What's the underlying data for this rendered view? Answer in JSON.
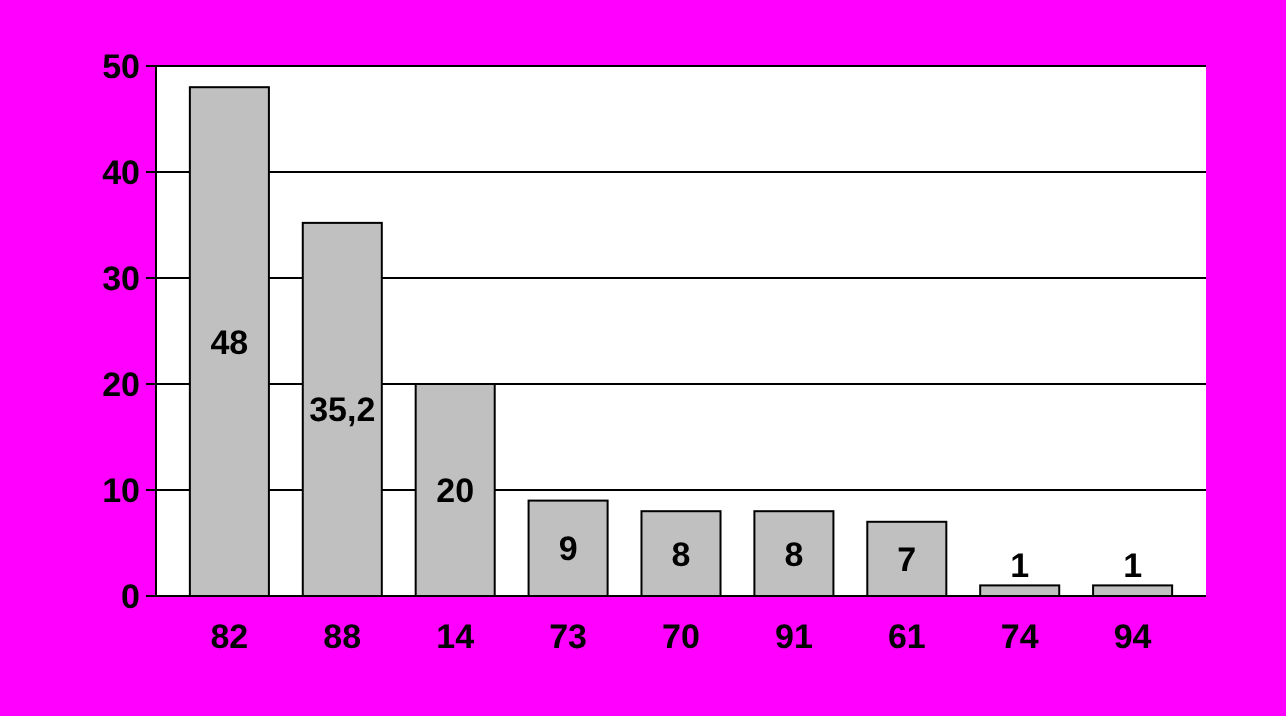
{
  "chart_data": {
    "type": "bar",
    "categories": [
      "82",
      "88",
      "14",
      "73",
      "70",
      "91",
      "61",
      "74",
      "94"
    ],
    "values": [
      48,
      35.2,
      20,
      9,
      8,
      8,
      7,
      1,
      1
    ],
    "value_labels": [
      "48",
      "35,2",
      "20",
      "9",
      "8",
      "8",
      "7",
      "1",
      "1"
    ],
    "color": "#c0c0c0",
    "ylim": [
      0,
      50
    ],
    "yticks": [
      0,
      10,
      20,
      30,
      40,
      50
    ],
    "grid": "y"
  }
}
